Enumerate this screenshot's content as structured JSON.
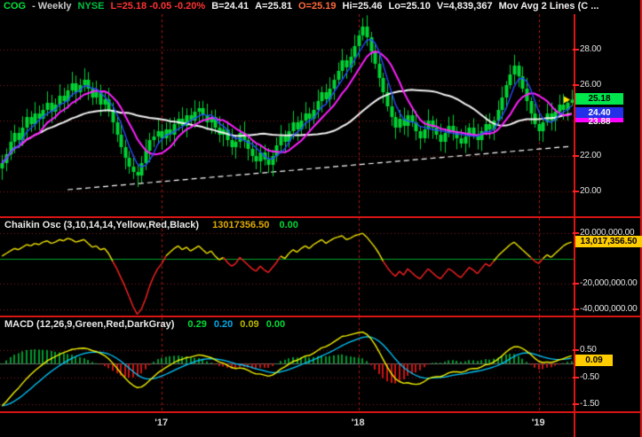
{
  "header": {
    "segments": [
      {
        "text": "COG",
        "color": "#00e33c"
      },
      {
        "text": "- Weekly",
        "color": "#c8c8c8"
      },
      {
        "text": "NYSE",
        "color": "#00c040"
      },
      {
        "text": "L=25.18 -0.05 -0.20%",
        "color": "#ff3232"
      },
      {
        "text": "B=24.41",
        "color": "#f0f0f0"
      },
      {
        "text": "A=25.81",
        "color": "#f0f0f0"
      },
      {
        "text": "O=25.19",
        "color": "#ff6a3c"
      },
      {
        "text": "Hi=25.46",
        "color": "#f0f0f0"
      },
      {
        "text": "Lo=25.10",
        "color": "#f0f0f0"
      },
      {
        "text": "V=4,839,367",
        "color": "#f0f0f0"
      },
      {
        "text": "Mov Avg 2 Lines (C ...",
        "color": "#f0f0f0"
      }
    ]
  },
  "panels": {
    "chaikin": {
      "title": "Chaikin Osc (3,10,14,14,Yellow,Red,Black)",
      "value": "13017356.50",
      "zero": "0.00"
    },
    "macd": {
      "title": "MACD (12,26,9,Green,Red,DarkGray)",
      "values": [
        {
          "text": "0.29",
          "color": "#00d936"
        },
        {
          "text": "0.20",
          "color": "#00a8e8"
        },
        {
          "text": "0.09",
          "color": "#b8b800"
        },
        {
          "text": "0.00",
          "color": "#00d936"
        }
      ]
    }
  },
  "colors": {
    "background": "#000000",
    "frame_red": "#d81414",
    "grid_red": "#8f1d1d",
    "year_line_red": "#b41616"
  },
  "chart_data": [
    {
      "type": "candlestick",
      "symbol": "COG",
      "timeframe": "Weekly",
      "exchange": "NYSE",
      "last_price": 25.18,
      "ylim": [
        18.6,
        30.0
      ],
      "gridline_values": [
        28,
        26,
        24,
        22,
        20
      ],
      "tick_values": [
        28,
        26,
        22,
        20
      ],
      "tick_labels": [
        "28.00",
        "26.00",
        "22.00",
        "20.00"
      ],
      "badges": [
        {
          "value": 25.18,
          "label": "25.18",
          "bg": "#00e64d",
          "fg": "#000000"
        },
        {
          "value": 24.4,
          "label": "24.40",
          "bg": "#2430e8",
          "fg": "#ffffff"
        },
        {
          "value": 24.05,
          "label": "",
          "bg": "#ff00ff",
          "fg": "#000000"
        },
        {
          "value": 23.88,
          "label": "23.88",
          "bg": "transparent",
          "fg": "#f0f0f0"
        }
      ],
      "candle_color": "#00d435",
      "closes": [
        21.6,
        22.1,
        22.8,
        23.3,
        22.9,
        23.6,
        24.2,
        23.8,
        24.4,
        24.1,
        24.6,
        25.0,
        24.5,
        24.9,
        25.4,
        25.1,
        25.7,
        26.1,
        25.6,
        26.0,
        26.3,
        25.8,
        25.3,
        25.6,
        24.9,
        25.2,
        24.6,
        23.9,
        23.2,
        22.5,
        21.9,
        21.4,
        21.1,
        20.9,
        21.6,
        22.3,
        22.9,
        23.1,
        23.4,
        23.0,
        23.5,
        23.2,
        23.8,
        24.1,
        23.7,
        24.3,
        24.0,
        24.5,
        24.7,
        24.3,
        23.9,
        24.2,
        23.6,
        23.2,
        23.5,
        22.9,
        22.5,
        22.8,
        23.3,
        22.9,
        22.4,
        22.0,
        21.7,
        22.2,
        21.8,
        21.5,
        22.0,
        22.6,
        23.1,
        22.8,
        23.4,
        23.9,
        23.5,
        24.0,
        24.4,
        24.1,
        24.6,
        25.1,
        25.6,
        25.2,
        25.8,
        26.3,
        26.8,
        27.4,
        27.0,
        27.6,
        28.2,
        28.8,
        29.3,
        28.7,
        27.9,
        27.2,
        26.4,
        25.6,
        24.8,
        24.2,
        23.6,
        24.1,
        23.7,
        24.3,
        23.9,
        23.4,
        23.0,
        23.5,
        24.0,
        23.6,
        23.2,
        22.8,
        23.3,
        23.7,
        23.4,
        23.0,
        22.7,
        23.1,
        23.6,
        23.2,
        22.9,
        23.4,
        23.8,
        23.5,
        24.0,
        24.6,
        25.3,
        26.0,
        26.6,
        27.1,
        26.5,
        25.8,
        25.1,
        24.4,
        23.8,
        23.4,
        23.9,
        24.4,
        24.0,
        24.5,
        24.9,
        24.6,
        25.0,
        25.18
      ],
      "moving_averages": [
        {
          "name": "slow-ma",
          "period": 30,
          "color": "#f2f2f2",
          "width": 2
        },
        {
          "name": "mid-ma",
          "period": 10,
          "color": "#ff1fff",
          "width": 2
        },
        {
          "name": "fast-ma",
          "period": 5,
          "color": "#2b48ff",
          "width": 1.4
        }
      ],
      "trendline": {
        "from_index": 16,
        "from_price": 20.1,
        "to_index": 139,
        "to_price": 22.55,
        "color": "#ffffff",
        "style": "dashed"
      },
      "year_ticks": [
        {
          "label": "'17",
          "index": 39
        },
        {
          "label": "'18",
          "index": 87
        },
        {
          "label": "'19",
          "index": 131
        }
      ]
    },
    {
      "type": "line",
      "name": "Chaikin Oscillator",
      "units": "millions",
      "ylim": [
        -45,
        32
      ],
      "tick_values": [
        20,
        -20,
        -40
      ],
      "tick_labels": [
        "20,000,000.00",
        "-20,000,000.00",
        "-40,000,000.00"
      ],
      "badge": {
        "value": 13.0173565,
        "label": "13,017,356.50",
        "bg": "#ffcc00",
        "fg": "#000000"
      },
      "zero_line_color": "#00a32b",
      "positive_color": "#f2e500",
      "negative_color": "#ff2222",
      "values": [
        2,
        4,
        6,
        8,
        7,
        9,
        11,
        10,
        12,
        11,
        13,
        14,
        12,
        13,
        15,
        14,
        16,
        15,
        13,
        14,
        15,
        12,
        9,
        10,
        7,
        8,
        4,
        -2,
        -8,
        -15,
        -22,
        -30,
        -38,
        -44,
        -40,
        -32,
        -22,
        -14,
        -8,
        -4,
        2,
        5,
        8,
        10,
        7,
        9,
        6,
        8,
        10,
        7,
        4,
        6,
        2,
        -1,
        1,
        -3,
        -6,
        -4,
        1,
        -2,
        -5,
        -8,
        -10,
        -6,
        -9,
        -11,
        -7,
        -3,
        2,
        0,
        4,
        7,
        5,
        8,
        10,
        8,
        11,
        13,
        15,
        12,
        14,
        16,
        17,
        18,
        15,
        16,
        18,
        19,
        20,
        17,
        13,
        9,
        4,
        -2,
        -7,
        -11,
        -14,
        -10,
        -13,
        -8,
        -11,
        -14,
        -16,
        -12,
        -8,
        -11,
        -14,
        -16,
        -12,
        -8,
        -10,
        -13,
        -15,
        -11,
        -7,
        -9,
        -12,
        -8,
        -4,
        -6,
        -2,
        2,
        5,
        8,
        11,
        13,
        10,
        7,
        4,
        1,
        -2,
        -4,
        0,
        3,
        1,
        4,
        7,
        10,
        12,
        13.0173565
      ]
    },
    {
      "type": "macd",
      "name": "MACD",
      "params": [
        12,
        26,
        9
      ],
      "ylim": [
        -1.75,
        1.7
      ],
      "tick_values": [
        0.5,
        -0.5,
        -1.5
      ],
      "tick_labels": [
        "0.50",
        "-0.50",
        "-1.50"
      ],
      "badge": {
        "value": 0.09,
        "label": "0.09",
        "bg": "#ffcc00",
        "fg": "#000000"
      },
      "signal_period": 9,
      "macd_color": "#f2f200",
      "signal_color": "#00c8ff",
      "hist_pos_color": "#00992e",
      "hist_neg_color": "#cc1414",
      "zero_line_color": "#6e6e6e",
      "macd_line": [
        -1.55,
        -1.4,
        -1.22,
        -1.05,
        -0.9,
        -0.72,
        -0.55,
        -0.4,
        -0.26,
        -0.14,
        -0.02,
        0.1,
        0.18,
        0.26,
        0.34,
        0.4,
        0.46,
        0.52,
        0.54,
        0.56,
        0.57,
        0.54,
        0.48,
        0.44,
        0.38,
        0.3,
        0.18,
        0.02,
        -0.16,
        -0.35,
        -0.52,
        -0.68,
        -0.8,
        -0.88,
        -0.86,
        -0.76,
        -0.62,
        -0.48,
        -0.34,
        -0.24,
        -0.14,
        -0.05,
        0.04,
        0.12,
        0.16,
        0.22,
        0.24,
        0.28,
        0.32,
        0.3,
        0.26,
        0.22,
        0.14,
        0.06,
        0.02,
        -0.06,
        -0.14,
        -0.18,
        -0.16,
        -0.18,
        -0.24,
        -0.32,
        -0.38,
        -0.38,
        -0.42,
        -0.46,
        -0.42,
        -0.32,
        -0.2,
        -0.12,
        -0.02,
        0.08,
        0.12,
        0.2,
        0.28,
        0.3,
        0.38,
        0.48,
        0.58,
        0.62,
        0.7,
        0.8,
        0.9,
        1.0,
        1.02,
        1.06,
        1.1,
        1.14,
        1.16,
        1.08,
        0.92,
        0.7,
        0.44,
        0.16,
        -0.12,
        -0.36,
        -0.56,
        -0.66,
        -0.72,
        -0.7,
        -0.74,
        -0.76,
        -0.74,
        -0.66,
        -0.56,
        -0.5,
        -0.48,
        -0.48,
        -0.42,
        -0.34,
        -0.3,
        -0.3,
        -0.32,
        -0.28,
        -0.2,
        -0.18,
        -0.18,
        -0.12,
        -0.04,
        -0.02,
        0.06,
        0.16,
        0.28,
        0.42,
        0.54,
        0.62,
        0.62,
        0.56,
        0.46,
        0.34,
        0.2,
        0.08,
        0.04,
        0.06,
        0.04,
        0.08,
        0.14,
        0.18,
        0.24,
        0.29
      ]
    }
  ]
}
